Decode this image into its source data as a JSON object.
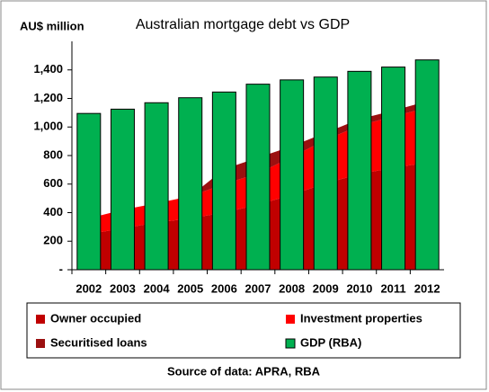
{
  "chart_data": {
    "type": "combo",
    "title": "Australian mortgage debt vs GDP",
    "y_label": "AU$ million",
    "source": "Source of data: APRA, RBA",
    "categories": [
      "2002",
      "2003",
      "2004",
      "2005",
      "2006",
      "2007",
      "2008",
      "2009",
      "2010",
      "2011",
      "2012"
    ],
    "series": [
      {
        "name": "Owner occupied",
        "type": "area",
        "color": "#c00000",
        "values": [
          250,
          290,
          330,
          360,
          400,
          455,
          525,
          605,
          670,
          715,
          750
        ]
      },
      {
        "name": "Investment properties",
        "type": "area",
        "color": "#ff0000",
        "values": [
          110,
          130,
          135,
          155,
          200,
          220,
          265,
          305,
          340,
          360,
          385
        ]
      },
      {
        "name": "Securitised loans",
        "type": "area",
        "color": "#9b1010",
        "values": [
          0,
          0,
          0,
          0,
          105,
          110,
          75,
          50,
          45,
          40,
          45
        ]
      },
      {
        "name": "GDP (RBA)",
        "type": "bar",
        "color": "#00b050",
        "values": [
          1095,
          1125,
          1170,
          1205,
          1245,
          1300,
          1330,
          1350,
          1390,
          1420,
          1470
        ]
      }
    ],
    "ylim": [
      0,
      1600
    ],
    "yticks": [
      {
        "value": 0,
        "label": "-"
      },
      200,
      400,
      600,
      800,
      {
        "value": 1000,
        "label": "1,000"
      },
      {
        "value": 1200,
        "label": "1,200"
      },
      {
        "value": 1400,
        "label": "1,400"
      }
    ],
    "grid": false
  }
}
